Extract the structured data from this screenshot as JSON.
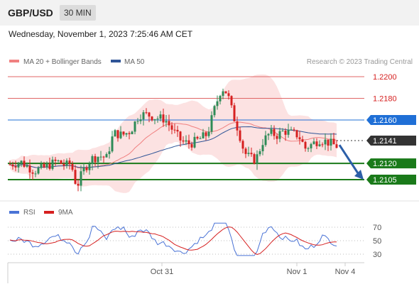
{
  "header": {
    "pair": "GBP/USD",
    "timeframe": "30 MIN"
  },
  "timestamp": "Wednesday, November 1, 2023 7:25:46 AM CET",
  "legend": {
    "ma20": "MA 20 + Bollinger Bands",
    "ma50": "MA 50",
    "source": "Research © 2023 Trading Central",
    "rsi": "RSI",
    "rsi_ma": "9MA"
  },
  "colors": {
    "ma20": "#f08080",
    "ma50": "#2f5597",
    "band": "#fbd5d5",
    "bull": "#2e8b57",
    "bear": "#d62020",
    "support": "#1a7a1a",
    "resistance": "#e06666",
    "pivot": "#1f6fd6",
    "current": "#333333",
    "rsi": "#4a73d6",
    "arrow": "#2c5fa8"
  },
  "chart_data": [
    {
      "type": "candlestick",
      "name": "GBP/USD 30 MIN",
      "ylim": [
        1.2092,
        1.221
      ],
      "x_tick_labels": [
        "Oct 31",
        "Nov 1",
        "Nov 4"
      ],
      "levels": [
        {
          "value": 1.22,
          "label": "1.2200",
          "kind": "resistance"
        },
        {
          "value": 1.218,
          "label": "1.2180",
          "kind": "resistance"
        },
        {
          "value": 1.216,
          "label": "1.2160",
          "kind": "pivot"
        },
        {
          "value": 1.2141,
          "label": "1.2141",
          "kind": "current"
        },
        {
          "value": 1.212,
          "label": "1.2120",
          "kind": "support"
        },
        {
          "value": 1.2105,
          "label": "1.2105",
          "kind": "support"
        }
      ],
      "forecast_arrow": {
        "from": 1.2137,
        "to": 1.2105
      }
    },
    {
      "type": "line",
      "name": "RSI",
      "ylim": [
        20,
        80
      ],
      "y_tick_labels": [
        "70",
        "50",
        "30"
      ],
      "y_ticks": [
        70,
        50,
        30
      ]
    }
  ]
}
